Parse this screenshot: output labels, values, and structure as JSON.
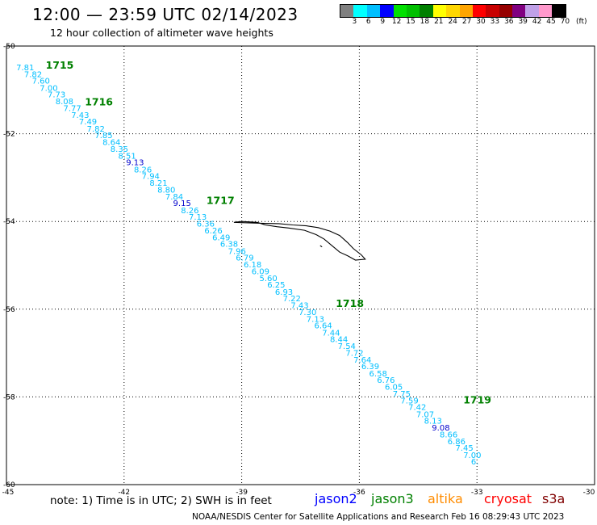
{
  "header": {
    "title": "12:00 — 23:59 UTC 02/14/2023",
    "subtitle": "12 hour collection of altimeter wave heights"
  },
  "colorbar": {
    "colors": [
      "#808080",
      "#00ffff",
      "#00bfff",
      "#0000ff",
      "#00e000",
      "#00c000",
      "#008000",
      "#ffff00",
      "#ffd700",
      "#ffa500",
      "#ff0000",
      "#c80000",
      "#960000",
      "#800080",
      "#c0a0e8",
      "#ff99cc",
      "#000000"
    ],
    "labels": [
      "3",
      "6",
      "9",
      "12",
      "15",
      "18",
      "21",
      "24",
      "27",
      "30",
      "33",
      "36",
      "39",
      "42",
      "45",
      "70"
    ],
    "unit": "(ft)"
  },
  "map": {
    "lon_range": [
      -45,
      -30
    ],
    "lat_range": [
      -60,
      -50
    ],
    "lon_ticks": [
      "-45",
      "-42",
      "-39",
      "-36",
      "-33",
      "-30"
    ],
    "lat_ticks": [
      "-50",
      "-52",
      "-54",
      "-56",
      "-58",
      "-60"
    ],
    "lat_tick_values": [
      -50,
      -52,
      -54,
      -56,
      -58,
      -60
    ],
    "lon_tick_values": [
      -45,
      -42,
      -39,
      -36,
      -33,
      -30
    ],
    "track_color": "#00bfff",
    "high_color": "#0000cc",
    "time_color": "#008000",
    "island": [
      [
        -39.2,
        -54.02
      ],
      [
        -39.0,
        -54.0
      ],
      [
        -38.6,
        -54.02
      ],
      [
        -38.4,
        -54.08
      ],
      [
        -38.1,
        -54.12
      ],
      [
        -37.8,
        -54.15
      ],
      [
        -37.4,
        -54.2
      ],
      [
        -37.1,
        -54.3
      ],
      [
        -36.9,
        -54.4
      ],
      [
        -36.7,
        -54.55
      ],
      [
        -36.5,
        -54.7
      ],
      [
        -36.3,
        -54.78
      ],
      [
        -36.1,
        -54.88
      ],
      [
        -35.85,
        -54.86
      ],
      [
        -35.95,
        -54.76
      ],
      [
        -36.15,
        -54.62
      ],
      [
        -36.3,
        -54.48
      ],
      [
        -36.5,
        -54.32
      ],
      [
        -36.75,
        -54.22
      ],
      [
        -37.05,
        -54.14
      ],
      [
        -37.35,
        -54.1
      ],
      [
        -37.7,
        -54.08
      ],
      [
        -38.05,
        -54.05
      ],
      [
        -38.5,
        -54.04
      ],
      [
        -38.9,
        -54.03
      ],
      [
        -39.2,
        -54.02
      ]
    ],
    "island_small": [
      [
        -37.0,
        -54.55
      ],
      [
        -36.95,
        -54.58
      ]
    ],
    "points": [
      {
        "v": "7.81",
        "lon": -44.75,
        "lat": -50.55,
        "c": 0
      },
      {
        "v": "7.82",
        "lon": -44.55,
        "lat": -50.71,
        "c": 0
      },
      {
        "v": "7.60",
        "lon": -44.35,
        "lat": -50.86,
        "c": 0
      },
      {
        "v": "7.00",
        "lon": -44.15,
        "lat": -51.02,
        "c": 0
      },
      {
        "v": "7.73",
        "lon": -43.95,
        "lat": -51.17,
        "c": 0
      },
      {
        "v": "8.08",
        "lon": -43.75,
        "lat": -51.33,
        "c": 0
      },
      {
        "v": "7.77",
        "lon": -43.55,
        "lat": -51.48,
        "c": 0
      },
      {
        "v": "7.43",
        "lon": -43.35,
        "lat": -51.64,
        "c": 0
      },
      {
        "v": "7.49",
        "lon": -43.15,
        "lat": -51.79,
        "c": 0
      },
      {
        "v": "7.82",
        "lon": -42.95,
        "lat": -51.95,
        "c": 0
      },
      {
        "v": "7.85",
        "lon": -42.75,
        "lat": -52.1,
        "c": 0
      },
      {
        "v": "8.64",
        "lon": -42.55,
        "lat": -52.26,
        "c": 0
      },
      {
        "v": "8.35",
        "lon": -42.35,
        "lat": -52.41,
        "c": 0
      },
      {
        "v": "8.51",
        "lon": -42.15,
        "lat": -52.57,
        "c": 0
      },
      {
        "v": "9.13",
        "lon": -41.95,
        "lat": -52.72,
        "c": 1
      },
      {
        "v": "8.26",
        "lon": -41.75,
        "lat": -52.88,
        "c": 0
      },
      {
        "v": "7.94",
        "lon": -41.55,
        "lat": -53.03,
        "c": 0
      },
      {
        "v": "8.21",
        "lon": -41.35,
        "lat": -53.19,
        "c": 0
      },
      {
        "v": "8.80",
        "lon": -41.15,
        "lat": -53.34,
        "c": 0
      },
      {
        "v": "7.84",
        "lon": -40.95,
        "lat": -53.5,
        "c": 0
      },
      {
        "v": "9.15",
        "lon": -40.75,
        "lat": -53.65,
        "c": 1
      },
      {
        "v": "8.26",
        "lon": -40.55,
        "lat": -53.81,
        "c": 0
      },
      {
        "v": "7.13",
        "lon": -40.35,
        "lat": -53.96,
        "c": 0
      },
      {
        "v": "6.36",
        "lon": -40.15,
        "lat": -54.12,
        "c": 0
      },
      {
        "v": "6.26",
        "lon": -39.95,
        "lat": -54.27,
        "c": 0
      },
      {
        "v": "6.49",
        "lon": -39.75,
        "lat": -54.43,
        "c": 0
      },
      {
        "v": "6.38",
        "lon": -39.55,
        "lat": -54.58,
        "c": 0
      },
      {
        "v": "7.96",
        "lon": -39.35,
        "lat": -54.74,
        "c": 0
      },
      {
        "v": "6.79",
        "lon": -39.15,
        "lat": -54.89,
        "c": 0
      },
      {
        "v": "6.18",
        "lon": -38.95,
        "lat": -55.05,
        "c": 0
      },
      {
        "v": "6.09",
        "lon": -38.75,
        "lat": -55.2,
        "c": 0
      },
      {
        "v": "5.60",
        "lon": -38.55,
        "lat": -55.36,
        "c": 0
      },
      {
        "v": "6.25",
        "lon": -38.35,
        "lat": -55.51,
        "c": 0
      },
      {
        "v": "6.93",
        "lon": -38.15,
        "lat": -55.67,
        "c": 0
      },
      {
        "v": "7.22",
        "lon": -37.95,
        "lat": -55.82,
        "c": 0
      },
      {
        "v": "7.43",
        "lon": -37.75,
        "lat": -55.98,
        "c": 0
      },
      {
        "v": "7.30",
        "lon": -37.55,
        "lat": -56.13,
        "c": 0
      },
      {
        "v": "7.13",
        "lon": -37.35,
        "lat": -56.29,
        "c": 0
      },
      {
        "v": "6.64",
        "lon": -37.15,
        "lat": -56.44,
        "c": 0
      },
      {
        "v": "7.44",
        "lon": -36.95,
        "lat": -56.6,
        "c": 0
      },
      {
        "v": "8.44",
        "lon": -36.75,
        "lat": -56.75,
        "c": 0
      },
      {
        "v": "7.54",
        "lon": -36.55,
        "lat": -56.91,
        "c": 0
      },
      {
        "v": "7.72",
        "lon": -36.35,
        "lat": -57.06,
        "c": 0
      },
      {
        "v": "7.64",
        "lon": -36.15,
        "lat": -57.22,
        "c": 0
      },
      {
        "v": "6.39",
        "lon": -35.95,
        "lat": -57.37,
        "c": 0
      },
      {
        "v": "6.58",
        "lon": -35.75,
        "lat": -57.53,
        "c": 0
      },
      {
        "v": "6.76",
        "lon": -35.55,
        "lat": -57.68,
        "c": 0
      },
      {
        "v": "6.05",
        "lon": -35.35,
        "lat": -57.84,
        "c": 0
      },
      {
        "v": "7.75",
        "lon": -35.15,
        "lat": -57.99,
        "c": 0
      },
      {
        "v": "7.59",
        "lon": -34.95,
        "lat": -58.15,
        "c": 0
      },
      {
        "v": "7.42",
        "lon": -34.75,
        "lat": -58.3,
        "c": 0
      },
      {
        "v": "7.07",
        "lon": -34.55,
        "lat": -58.46,
        "c": 0
      },
      {
        "v": "8.13",
        "lon": -34.35,
        "lat": -58.61,
        "c": 0
      },
      {
        "v": "9.08",
        "lon": -34.15,
        "lat": -58.77,
        "c": 1
      },
      {
        "v": "8.66",
        "lon": -33.95,
        "lat": -58.92,
        "c": 0
      },
      {
        "v": "6.86",
        "lon": -33.75,
        "lat": -59.08,
        "c": 0
      },
      {
        "v": "7.45",
        "lon": -33.55,
        "lat": -59.23,
        "c": 0
      },
      {
        "v": "7.00",
        "lon": -33.35,
        "lat": -59.39,
        "c": 0
      },
      {
        "v": "6.",
        "lon": -33.15,
        "lat": -59.54,
        "c": 0
      }
    ],
    "times": [
      {
        "t": "1715",
        "lon": -44.0,
        "lat": -50.52
      },
      {
        "t": "1716",
        "lon": -43.0,
        "lat": -51.35
      },
      {
        "t": "1717",
        "lon": -39.9,
        "lat": -53.6
      },
      {
        "t": "1718",
        "lon": -36.6,
        "lat": -55.95
      },
      {
        "t": "1719",
        "lon": -33.35,
        "lat": -58.15
      }
    ]
  },
  "footer": {
    "note": "note: 1) Time is in UTC; 2) SWH is in feet",
    "missions": [
      {
        "name": "jason2",
        "color": "#0000ff"
      },
      {
        "name": "jason3",
        "color": "#008000"
      },
      {
        "name": "altika",
        "color": "#ff8c00"
      },
      {
        "name": "cryosat",
        "color": "#ff0000"
      },
      {
        "name": "s3a",
        "color": "#800000"
      }
    ],
    "credit": "NOAA/NESDIS Center for Satellite Applications and Research    Feb 16 08:29:43 UTC 2023"
  }
}
